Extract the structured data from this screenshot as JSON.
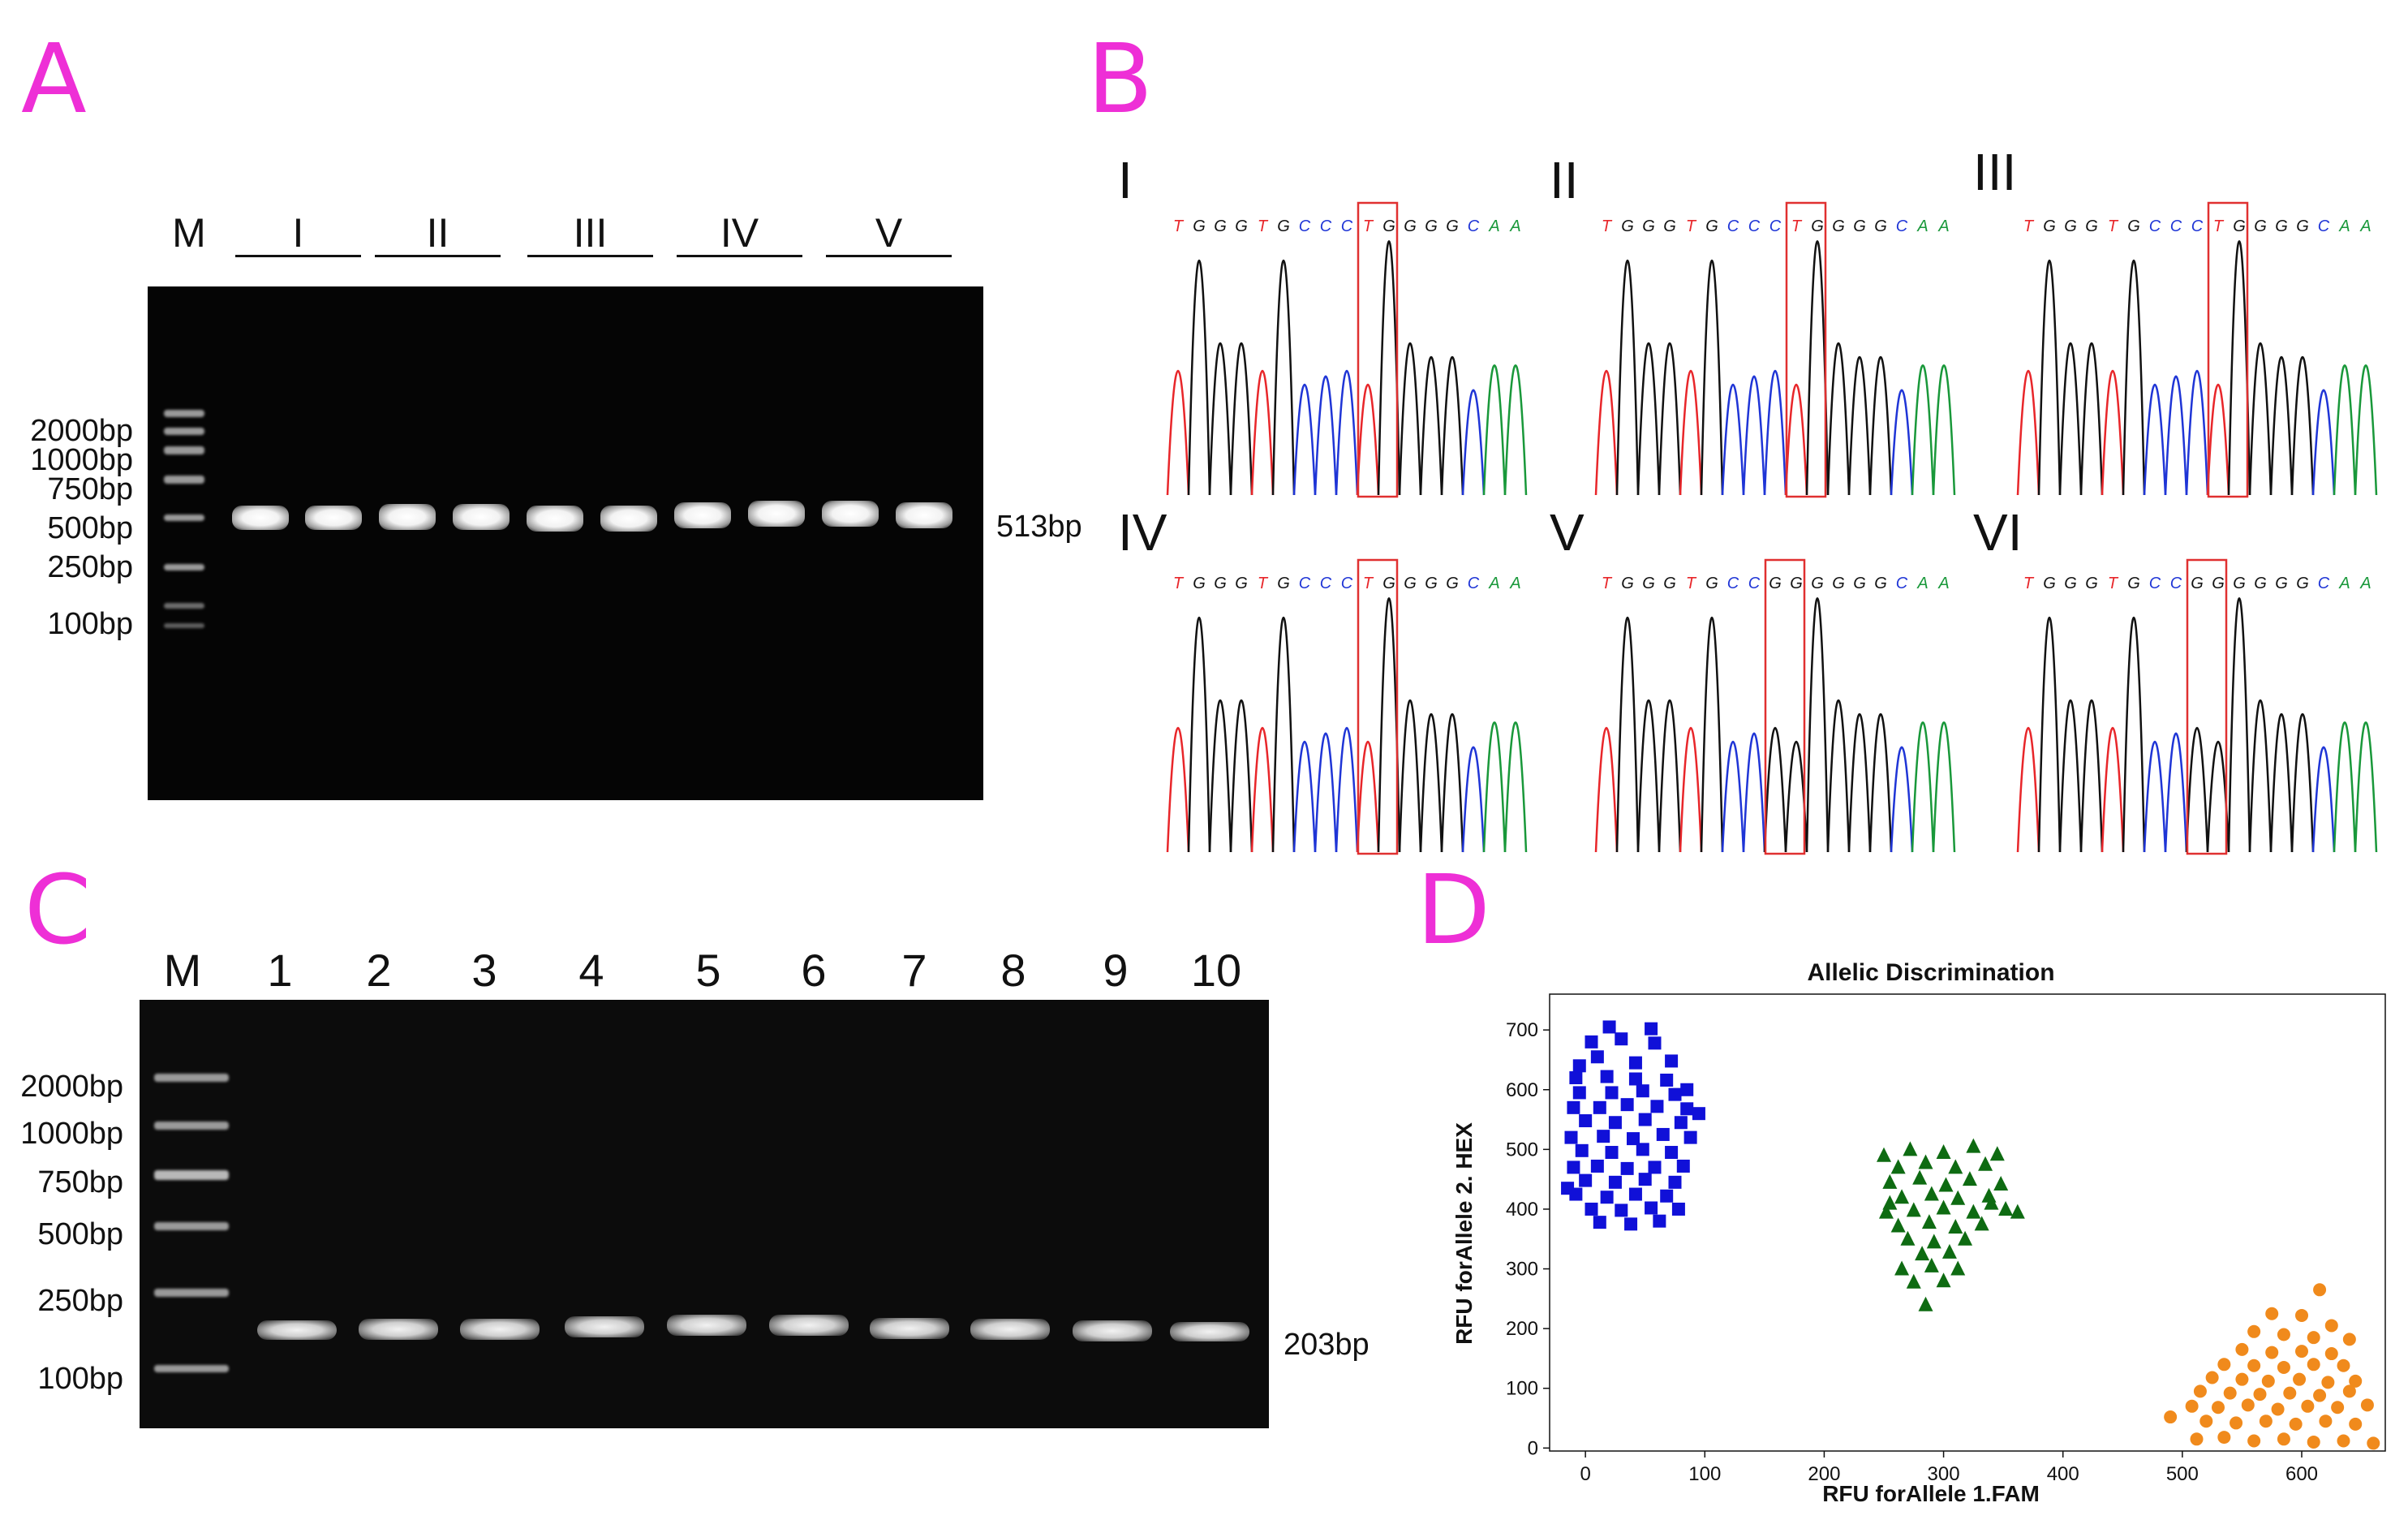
{
  "panels": {
    "a": {
      "letter": "A",
      "marker_label": "M",
      "groups": [
        "I",
        "II",
        "III",
        "IV",
        "V"
      ],
      "ladder": [
        "2000bp",
        "1000bp",
        "750bp",
        "500bp",
        "250bp",
        "100bp"
      ],
      "product_label": "513bp"
    },
    "b": {
      "letter": "B",
      "traces": [
        {
          "label": "I",
          "seq": [
            "T",
            "G",
            "G",
            "G",
            "T",
            "G",
            "C",
            "C",
            "C",
            "T",
            "G",
            "G",
            "G",
            "G",
            "C",
            "A",
            "A"
          ]
        },
        {
          "label": "II",
          "seq": [
            "T",
            "G",
            "G",
            "G",
            "T",
            "G",
            "C",
            "C",
            "C",
            "T",
            "G",
            "G",
            "G",
            "G",
            "C",
            "A",
            "A"
          ]
        },
        {
          "label": "III",
          "seq": [
            "T",
            "G",
            "G",
            "G",
            "T",
            "G",
            "C",
            "C",
            "C",
            "T",
            "G",
            "G",
            "G",
            "G",
            "C",
            "A",
            "A"
          ]
        },
        {
          "label": "IV",
          "seq": [
            "T",
            "G",
            "G",
            "G",
            "T",
            "G",
            "C",
            "C",
            "C",
            "T",
            "G",
            "G",
            "G",
            "G",
            "C",
            "A",
            "A"
          ]
        },
        {
          "label": "V",
          "seq": [
            "T",
            "G",
            "G",
            "G",
            "T",
            "G",
            "C",
            "C",
            "G",
            "G",
            "G",
            "G",
            "G",
            "G",
            "C",
            "A",
            "A"
          ]
        },
        {
          "label": "VI",
          "seq": [
            "T",
            "G",
            "G",
            "G",
            "T",
            "G",
            "C",
            "C",
            "G",
            "G",
            "G",
            "G",
            "G",
            "G",
            "C",
            "A",
            "A"
          ]
        }
      ],
      "base_colors": {
        "T": "#e8262a",
        "G": "#111111",
        "C": "#1f35d6",
        "A": "#19983a"
      },
      "box_color": "#e03030"
    },
    "c": {
      "letter": "C",
      "marker_label": "M",
      "lanes": [
        "1",
        "2",
        "3",
        "4",
        "5",
        "6",
        "7",
        "8",
        "9",
        "10"
      ],
      "ladder": [
        "2000bp",
        "1000bp",
        "750bp",
        "500bp",
        "250bp",
        "100bp"
      ],
      "product_label": "203bp"
    },
    "d": {
      "letter": "D"
    }
  },
  "chart_data": {
    "type": "scatter",
    "title": "Allelic Discrimination",
    "xlabel": "RFU forAllele 1.FAM",
    "ylabel": "RFU forAllele 2. HEX",
    "xlim": [
      -30,
      670
    ],
    "ylim": [
      -5,
      760
    ],
    "xticks": [
      0,
      100,
      200,
      300,
      400,
      500,
      600
    ],
    "yticks": [
      0,
      100,
      200,
      300,
      400,
      500,
      600,
      700
    ],
    "series": [
      {
        "marker": "square",
        "color": "#1010d8",
        "points": [
          [
            -8,
            620
          ],
          [
            18,
            622
          ],
          [
            42,
            618
          ],
          [
            68,
            616
          ],
          [
            -5,
            595
          ],
          [
            22,
            595
          ],
          [
            48,
            598
          ],
          [
            75,
            592
          ],
          [
            -10,
            570
          ],
          [
            12,
            570
          ],
          [
            35,
            575
          ],
          [
            60,
            572
          ],
          [
            85,
            568
          ],
          [
            0,
            548
          ],
          [
            25,
            545
          ],
          [
            50,
            550
          ],
          [
            80,
            545
          ],
          [
            -12,
            520
          ],
          [
            15,
            522
          ],
          [
            40,
            518
          ],
          [
            65,
            525
          ],
          [
            88,
            520
          ],
          [
            -3,
            498
          ],
          [
            22,
            495
          ],
          [
            48,
            500
          ],
          [
            72,
            495
          ],
          [
            -10,
            470
          ],
          [
            10,
            472
          ],
          [
            35,
            468
          ],
          [
            58,
            470
          ],
          [
            82,
            472
          ],
          [
            0,
            448
          ],
          [
            25,
            445
          ],
          [
            50,
            450
          ],
          [
            75,
            445
          ],
          [
            -8,
            425
          ],
          [
            18,
            420
          ],
          [
            42,
            425
          ],
          [
            68,
            422
          ],
          [
            5,
            400
          ],
          [
            30,
            398
          ],
          [
            55,
            402
          ],
          [
            78,
            400
          ],
          [
            12,
            378
          ],
          [
            38,
            375
          ],
          [
            62,
            380
          ],
          [
            5,
            680
          ],
          [
            30,
            685
          ],
          [
            58,
            678
          ],
          [
            20,
            705
          ],
          [
            55,
            702
          ],
          [
            -5,
            640
          ],
          [
            42,
            645
          ],
          [
            72,
            648
          ],
          [
            10,
            655
          ],
          [
            85,
            600
          ],
          [
            95,
            560
          ],
          [
            -15,
            435
          ]
        ]
      },
      {
        "marker": "triangle",
        "color": "#0e6b12",
        "points": [
          [
            250,
            490
          ],
          [
            272,
            500
          ],
          [
            300,
            495
          ],
          [
            325,
            505
          ],
          [
            345,
            492
          ],
          [
            262,
            470
          ],
          [
            285,
            478
          ],
          [
            310,
            470
          ],
          [
            335,
            475
          ],
          [
            255,
            445
          ],
          [
            280,
            452
          ],
          [
            302,
            440
          ],
          [
            322,
            450
          ],
          [
            348,
            442
          ],
          [
            265,
            420
          ],
          [
            290,
            425
          ],
          [
            312,
            418
          ],
          [
            338,
            422
          ],
          [
            252,
            395
          ],
          [
            275,
            398
          ],
          [
            300,
            402
          ],
          [
            325,
            395
          ],
          [
            352,
            400
          ],
          [
            362,
            395
          ],
          [
            262,
            372
          ],
          [
            288,
            378
          ],
          [
            310,
            370
          ],
          [
            332,
            375
          ],
          [
            270,
            350
          ],
          [
            292,
            345
          ],
          [
            318,
            350
          ],
          [
            282,
            325
          ],
          [
            305,
            328
          ],
          [
            265,
            300
          ],
          [
            290,
            305
          ],
          [
            312,
            300
          ],
          [
            275,
            278
          ],
          [
            300,
            280
          ],
          [
            285,
            240
          ],
          [
            255,
            410
          ],
          [
            340,
            410
          ]
        ]
      },
      {
        "marker": "circle",
        "color": "#f08a1c",
        "points": [
          [
            615,
            265
          ],
          [
            575,
            225
          ],
          [
            600,
            222
          ],
          [
            625,
            205
          ],
          [
            560,
            195
          ],
          [
            585,
            190
          ],
          [
            610,
            185
          ],
          [
            640,
            182
          ],
          [
            550,
            165
          ],
          [
            575,
            160
          ],
          [
            600,
            162
          ],
          [
            625,
            158
          ],
          [
            535,
            140
          ],
          [
            560,
            138
          ],
          [
            585,
            135
          ],
          [
            610,
            140
          ],
          [
            635,
            138
          ],
          [
            525,
            118
          ],
          [
            550,
            115
          ],
          [
            572,
            112
          ],
          [
            598,
            115
          ],
          [
            622,
            110
          ],
          [
            645,
            112
          ],
          [
            515,
            95
          ],
          [
            540,
            92
          ],
          [
            565,
            90
          ],
          [
            590,
            92
          ],
          [
            615,
            88
          ],
          [
            640,
            95
          ],
          [
            508,
            70
          ],
          [
            530,
            68
          ],
          [
            555,
            72
          ],
          [
            580,
            65
          ],
          [
            605,
            70
          ],
          [
            630,
            68
          ],
          [
            655,
            72
          ],
          [
            520,
            45
          ],
          [
            545,
            42
          ],
          [
            570,
            45
          ],
          [
            595,
            40
          ],
          [
            620,
            45
          ],
          [
            645,
            40
          ],
          [
            490,
            52
          ],
          [
            512,
            15
          ],
          [
            535,
            18
          ],
          [
            560,
            12
          ],
          [
            585,
            15
          ],
          [
            610,
            10
          ],
          [
            635,
            12
          ],
          [
            660,
            8
          ]
        ]
      }
    ]
  }
}
